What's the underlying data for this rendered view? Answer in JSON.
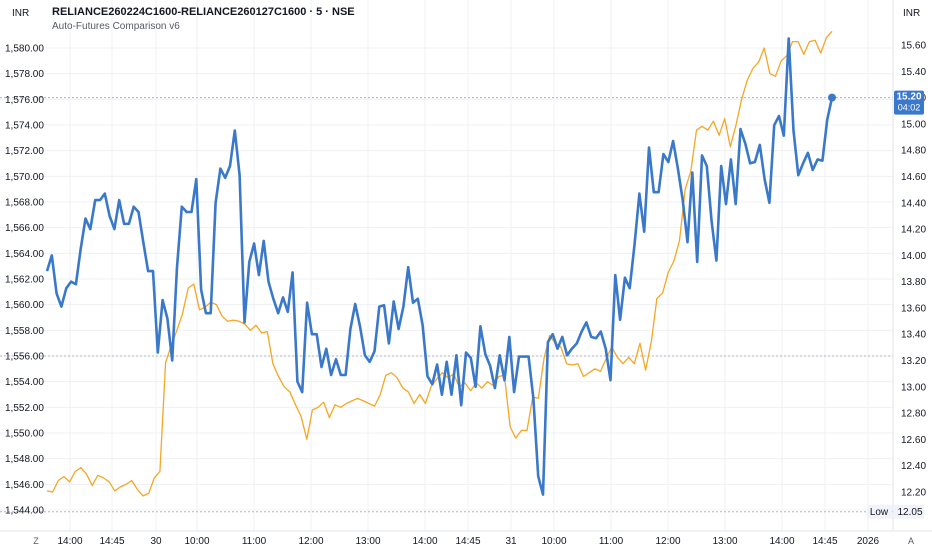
{
  "header": {
    "title": "RELIANCE260224C1600-RELIANCE260127C1600 · 5 · NSE",
    "subtitle": "Auto-Futures Comparison v6"
  },
  "left_unit": "INR",
  "right_unit": "INR",
  "corner_left": "Z",
  "corner_right": "A",
  "price_label": {
    "value": "15.20",
    "timer": "04:02"
  },
  "low_label": {
    "text": "Low",
    "value": "12.05"
  },
  "colors": {
    "orange": "#f5a623",
    "blue": "#3a78c9",
    "grid": "#eef0f3",
    "dotted": "#b2b5be",
    "tag": "#3a78c9"
  },
  "chart_data": {
    "type": "line",
    "x_ticks": [
      "14:00",
      "14:45",
      "30",
      "10:00",
      "11:00",
      "12:00",
      "13:00",
      "14:00",
      "14:45",
      "31",
      "10:00",
      "11:00",
      "12:00",
      "13:00",
      "14:00",
      "14:45",
      "2026"
    ],
    "left_axis": {
      "ticks": [
        "1,544.00",
        "1,546.00",
        "1,548.00",
        "1,550.00",
        "1,552.00",
        "1,554.00",
        "1,556.00",
        "1,558.00",
        "1,560.00",
        "1,562.00",
        "1,564.00",
        "1,566.00",
        "1,568.00",
        "1,570.00",
        "1,572.00",
        "1,574.00",
        "1,576.00",
        "1,578.00",
        "1,580.00"
      ],
      "range": [
        1543.0,
        1581.5
      ]
    },
    "right_axis": {
      "ticks": [
        "12.20",
        "12.40",
        "12.60",
        "12.80",
        "13.00",
        "13.20",
        "13.40",
        "13.60",
        "13.80",
        "14.00",
        "14.20",
        "14.40",
        "14.60",
        "14.80",
        "15.00",
        "15.20",
        "15.40",
        "15.60"
      ],
      "range": [
        12.02,
        15.72
      ]
    },
    "series": [
      {
        "axis": "left",
        "color": "#f5a623",
        "values": [
          1545.5,
          1545.4,
          1546.3,
          1546.6,
          1546.2,
          1547.0,
          1547.3,
          1546.8,
          1545.9,
          1546.7,
          1546.5,
          1546.2,
          1545.5,
          1545.8,
          1546.0,
          1546.3,
          1545.6,
          1545.1,
          1545.3,
          1546.5,
          1547.0,
          1555.5,
          1556.8,
          1558.0,
          1559.3,
          1561.3,
          1561.6,
          1559.6,
          1559.8,
          1560.2,
          1560.0,
          1559.1,
          1558.7,
          1558.8,
          1558.7,
          1558.5,
          1558.0,
          1558.4,
          1557.8,
          1557.9,
          1555.4,
          1554.4,
          1553.6,
          1553.2,
          1552.2,
          1551.3,
          1549.5,
          1551.8,
          1552.0,
          1552.4,
          1551.2,
          1552.2,
          1552.0,
          1552.3,
          1552.5,
          1552.7,
          1552.5,
          1552.3,
          1552.1,
          1553.0,
          1554.5,
          1554.7,
          1554.3,
          1553.5,
          1553.2,
          1552.3,
          1553.0,
          1552.3,
          1553.6,
          1554.2,
          1554.7,
          1554.3,
          1554.6,
          1553.6,
          1553.9,
          1553.3,
          1553.9,
          1553.5,
          1554.0,
          1553.7,
          1554.4,
          1554.5,
          1550.5,
          1549.6,
          1550.2,
          1550.2,
          1552.8,
          1552.7,
          1555.8,
          1557.6,
          1557.0,
          1556.7,
          1555.4,
          1555.3,
          1555.4,
          1554.4,
          1554.7,
          1555.0,
          1554.8,
          1555.8,
          1556.7,
          1555.9,
          1555.4,
          1555.9,
          1555.4,
          1557.0,
          1554.9,
          1557.1,
          1560.5,
          1560.9,
          1562.5,
          1563.4,
          1565.0,
          1569.0,
          1570.4,
          1573.6,
          1573.9,
          1573.6,
          1574.3,
          1573.2,
          1574.5,
          1572.3,
          1574.0,
          1576.0,
          1577.5,
          1578.4,
          1578.9,
          1580.0,
          1578.0,
          1577.8,
          1579.0,
          1579.4,
          1580.5,
          1580.5,
          1579.5,
          1580.5,
          1580.6,
          1579.6,
          1580.8,
          1581.3
        ]
      },
      {
        "axis": "right",
        "color": "#3a78c9",
        "values": [
          13.88,
          14.0,
          13.71,
          13.61,
          13.75,
          13.8,
          13.78,
          14.05,
          14.28,
          14.2,
          14.42,
          14.42,
          14.47,
          14.3,
          14.2,
          14.42,
          14.24,
          14.24,
          14.37,
          14.33,
          14.1,
          13.88,
          13.88,
          13.26,
          13.66,
          13.52,
          13.2,
          13.91,
          14.37,
          14.33,
          14.33,
          14.58,
          13.74,
          13.56,
          13.56,
          14.4,
          14.66,
          14.59,
          14.68,
          14.95,
          14.61,
          13.49,
          13.95,
          14.09,
          13.85,
          14.11,
          13.8,
          13.67,
          13.56,
          13.68,
          13.57,
          13.87,
          13.04,
          12.96,
          13.64,
          13.4,
          13.4,
          13.15,
          13.29,
          13.09,
          13.21,
          13.09,
          13.09,
          13.44,
          13.63,
          13.46,
          13.24,
          13.19,
          13.27,
          13.61,
          13.62,
          13.33,
          13.65,
          13.44,
          13.61,
          13.91,
          13.64,
          13.67,
          13.47,
          13.08,
          13.02,
          13.17,
          12.94,
          13.19,
          12.94,
          13.24,
          12.86,
          13.26,
          13.22,
          13.0,
          13.46,
          13.25,
          13.16,
          12.99,
          13.24,
          13.05,
          13.38,
          12.96,
          13.23,
          13.23,
          13.23,
          12.91,
          12.32,
          12.18,
          13.34,
          13.4,
          13.29,
          13.38,
          13.24,
          13.29,
          13.33,
          13.42,
          13.49,
          13.38,
          13.37,
          13.42,
          13.29,
          13.05,
          13.85,
          13.51,
          13.83,
          13.75,
          14.08,
          14.47,
          14.18,
          14.82,
          14.48,
          14.48,
          14.77,
          14.71,
          14.87,
          14.66,
          14.42,
          14.1,
          14.63,
          13.95,
          14.76,
          14.68,
          14.26,
          13.96,
          14.68,
          14.39,
          14.73,
          14.39,
          14.96,
          14.85,
          14.7,
          14.71,
          14.84,
          14.58,
          14.4,
          14.99,
          15.06,
          14.91,
          15.65,
          14.95,
          14.61,
          14.7,
          14.78,
          14.65,
          14.73,
          14.72,
          15.03,
          15.2
        ]
      }
    ]
  }
}
